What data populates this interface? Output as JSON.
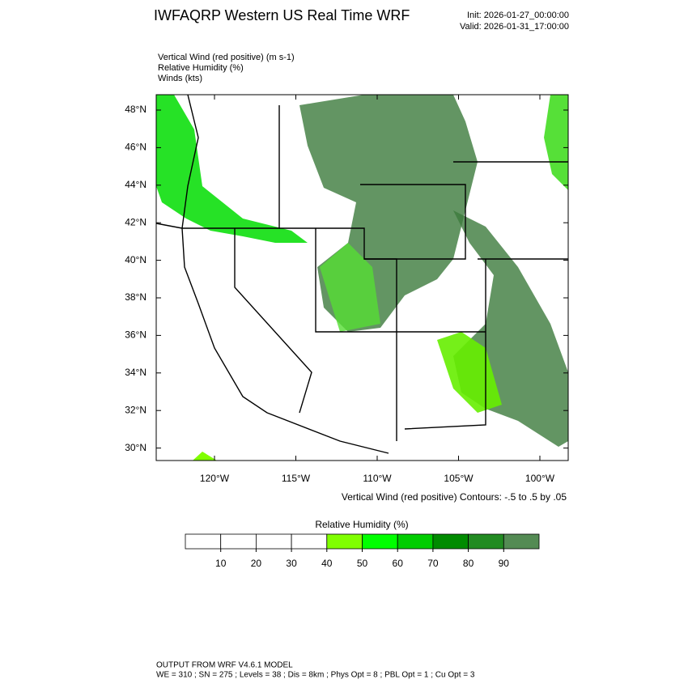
{
  "header": {
    "title": "IWFAQRP Western US Real Time WRF",
    "init": "Init: 2026-01-27_00:00:00",
    "valid": "Valid: 2026-01-31_17:00:00"
  },
  "fields": [
    "Vertical Wind (red positive)   (m s-1)",
    "Relative Humidity   (%)",
    "Winds   (kts)"
  ],
  "map": {
    "lat_ticks": [
      {
        "value": 48,
        "label": "48°N"
      },
      {
        "value": 46,
        "label": "46°N"
      },
      {
        "value": 44,
        "label": "44°N"
      },
      {
        "value": 42,
        "label": "42°N"
      },
      {
        "value": 40,
        "label": "40°N"
      },
      {
        "value": 38,
        "label": "38°N"
      },
      {
        "value": 36,
        "label": "36°N"
      },
      {
        "value": 34,
        "label": "34°N"
      },
      {
        "value": 32,
        "label": "32°N"
      },
      {
        "value": 30,
        "label": "30°N"
      }
    ],
    "lon_ticks": [
      {
        "value": -120,
        "label": "120°W"
      },
      {
        "value": -115,
        "label": "115°W"
      },
      {
        "value": -110,
        "label": "110°W"
      },
      {
        "value": -105,
        "label": "105°W"
      },
      {
        "value": -100,
        "label": "100°W"
      }
    ],
    "contour_note": "Vertical Wind (red positive) Contours: -.5 to .5 by .05"
  },
  "colorbar": {
    "title": "Relative Humidity   (%)",
    "levels": [
      10,
      20,
      30,
      40,
      50,
      60,
      70,
      80,
      90
    ],
    "colors": [
      "#ffffff",
      "#ffffff",
      "#ffffff",
      "#ffffff",
      "#80ff00",
      "#00ff00",
      "#00cd00",
      "#008b00",
      "#228b22",
      "#548b54"
    ]
  },
  "footer": [
    "OUTPUT FROM WRF V4.6.1 MODEL",
    "WE = 310 ; SN = 275 ; Levels = 38 ; Dis = 8km ; Phys Opt = 8 ; PBL Opt = 1 ; Cu Opt = 3"
  ]
}
